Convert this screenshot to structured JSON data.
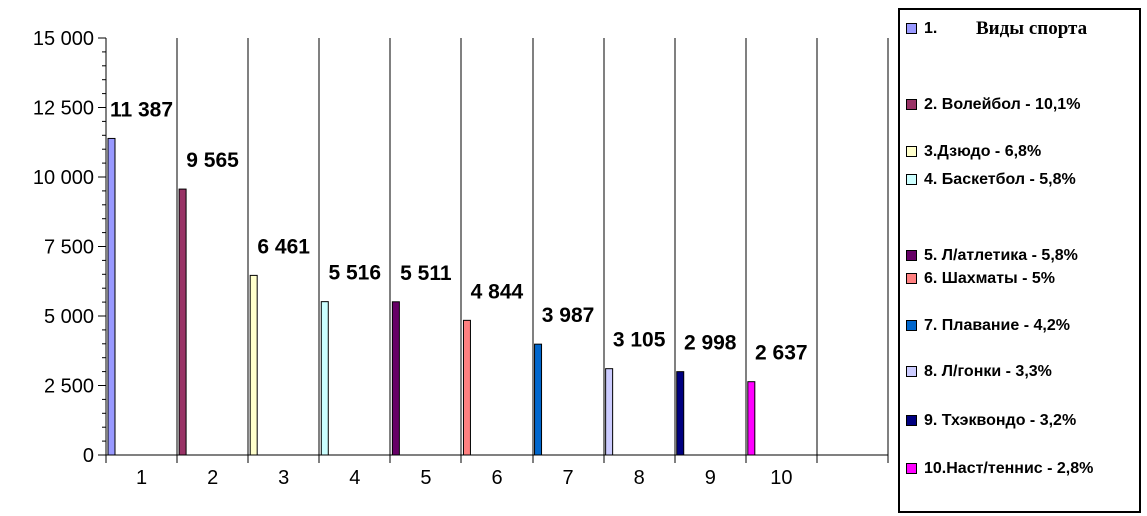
{
  "chart_data": {
    "type": "bar",
    "categories": [
      "1",
      "2",
      "3",
      "4",
      "5",
      "6",
      "7",
      "8",
      "9",
      "10"
    ],
    "values": [
      11387,
      9565,
      6461,
      5516,
      5511,
      4844,
      3987,
      3105,
      2998,
      2637
    ],
    "value_labels": [
      "11 387",
      "9 565",
      "6 461",
      "5 516",
      "5 511",
      "4 844",
      "3 987",
      "3 105",
      "2 998",
      "2 637"
    ],
    "colors": [
      "#9999ff",
      "#993366",
      "#ffffcc",
      "#ccffff",
      "#660066",
      "#ff8080",
      "#0066cc",
      "#ccccff",
      "#000080",
      "#ff00ff"
    ],
    "ylim": [
      0,
      15000
    ],
    "yticks": [
      0,
      2500,
      5000,
      7500,
      10000,
      12500,
      15000
    ],
    "ytick_labels": [
      "0",
      "2 500",
      "5 000",
      "7 500",
      "10 000",
      "12 500",
      "15 000"
    ],
    "grid": "vertical",
    "title": "",
    "xlabel": "",
    "ylabel": "",
    "legend": {
      "title": "Виды спорта",
      "placement": "right",
      "entries": [
        "1.",
        "2. Волейбол - 10,1%",
        "3.Дзюдо - 6,8%",
        "4. Баскетбол - 5,8%",
        "5. Л/атлетика - 5,8%",
        "6. Шахматы - 5%",
        "7. Плавание - 4,2%",
        "8. Л/гонки - 3,3%",
        "9. Тхэквондо - 3,2%",
        "10.Наст/теннис - 2,8%"
      ]
    }
  }
}
